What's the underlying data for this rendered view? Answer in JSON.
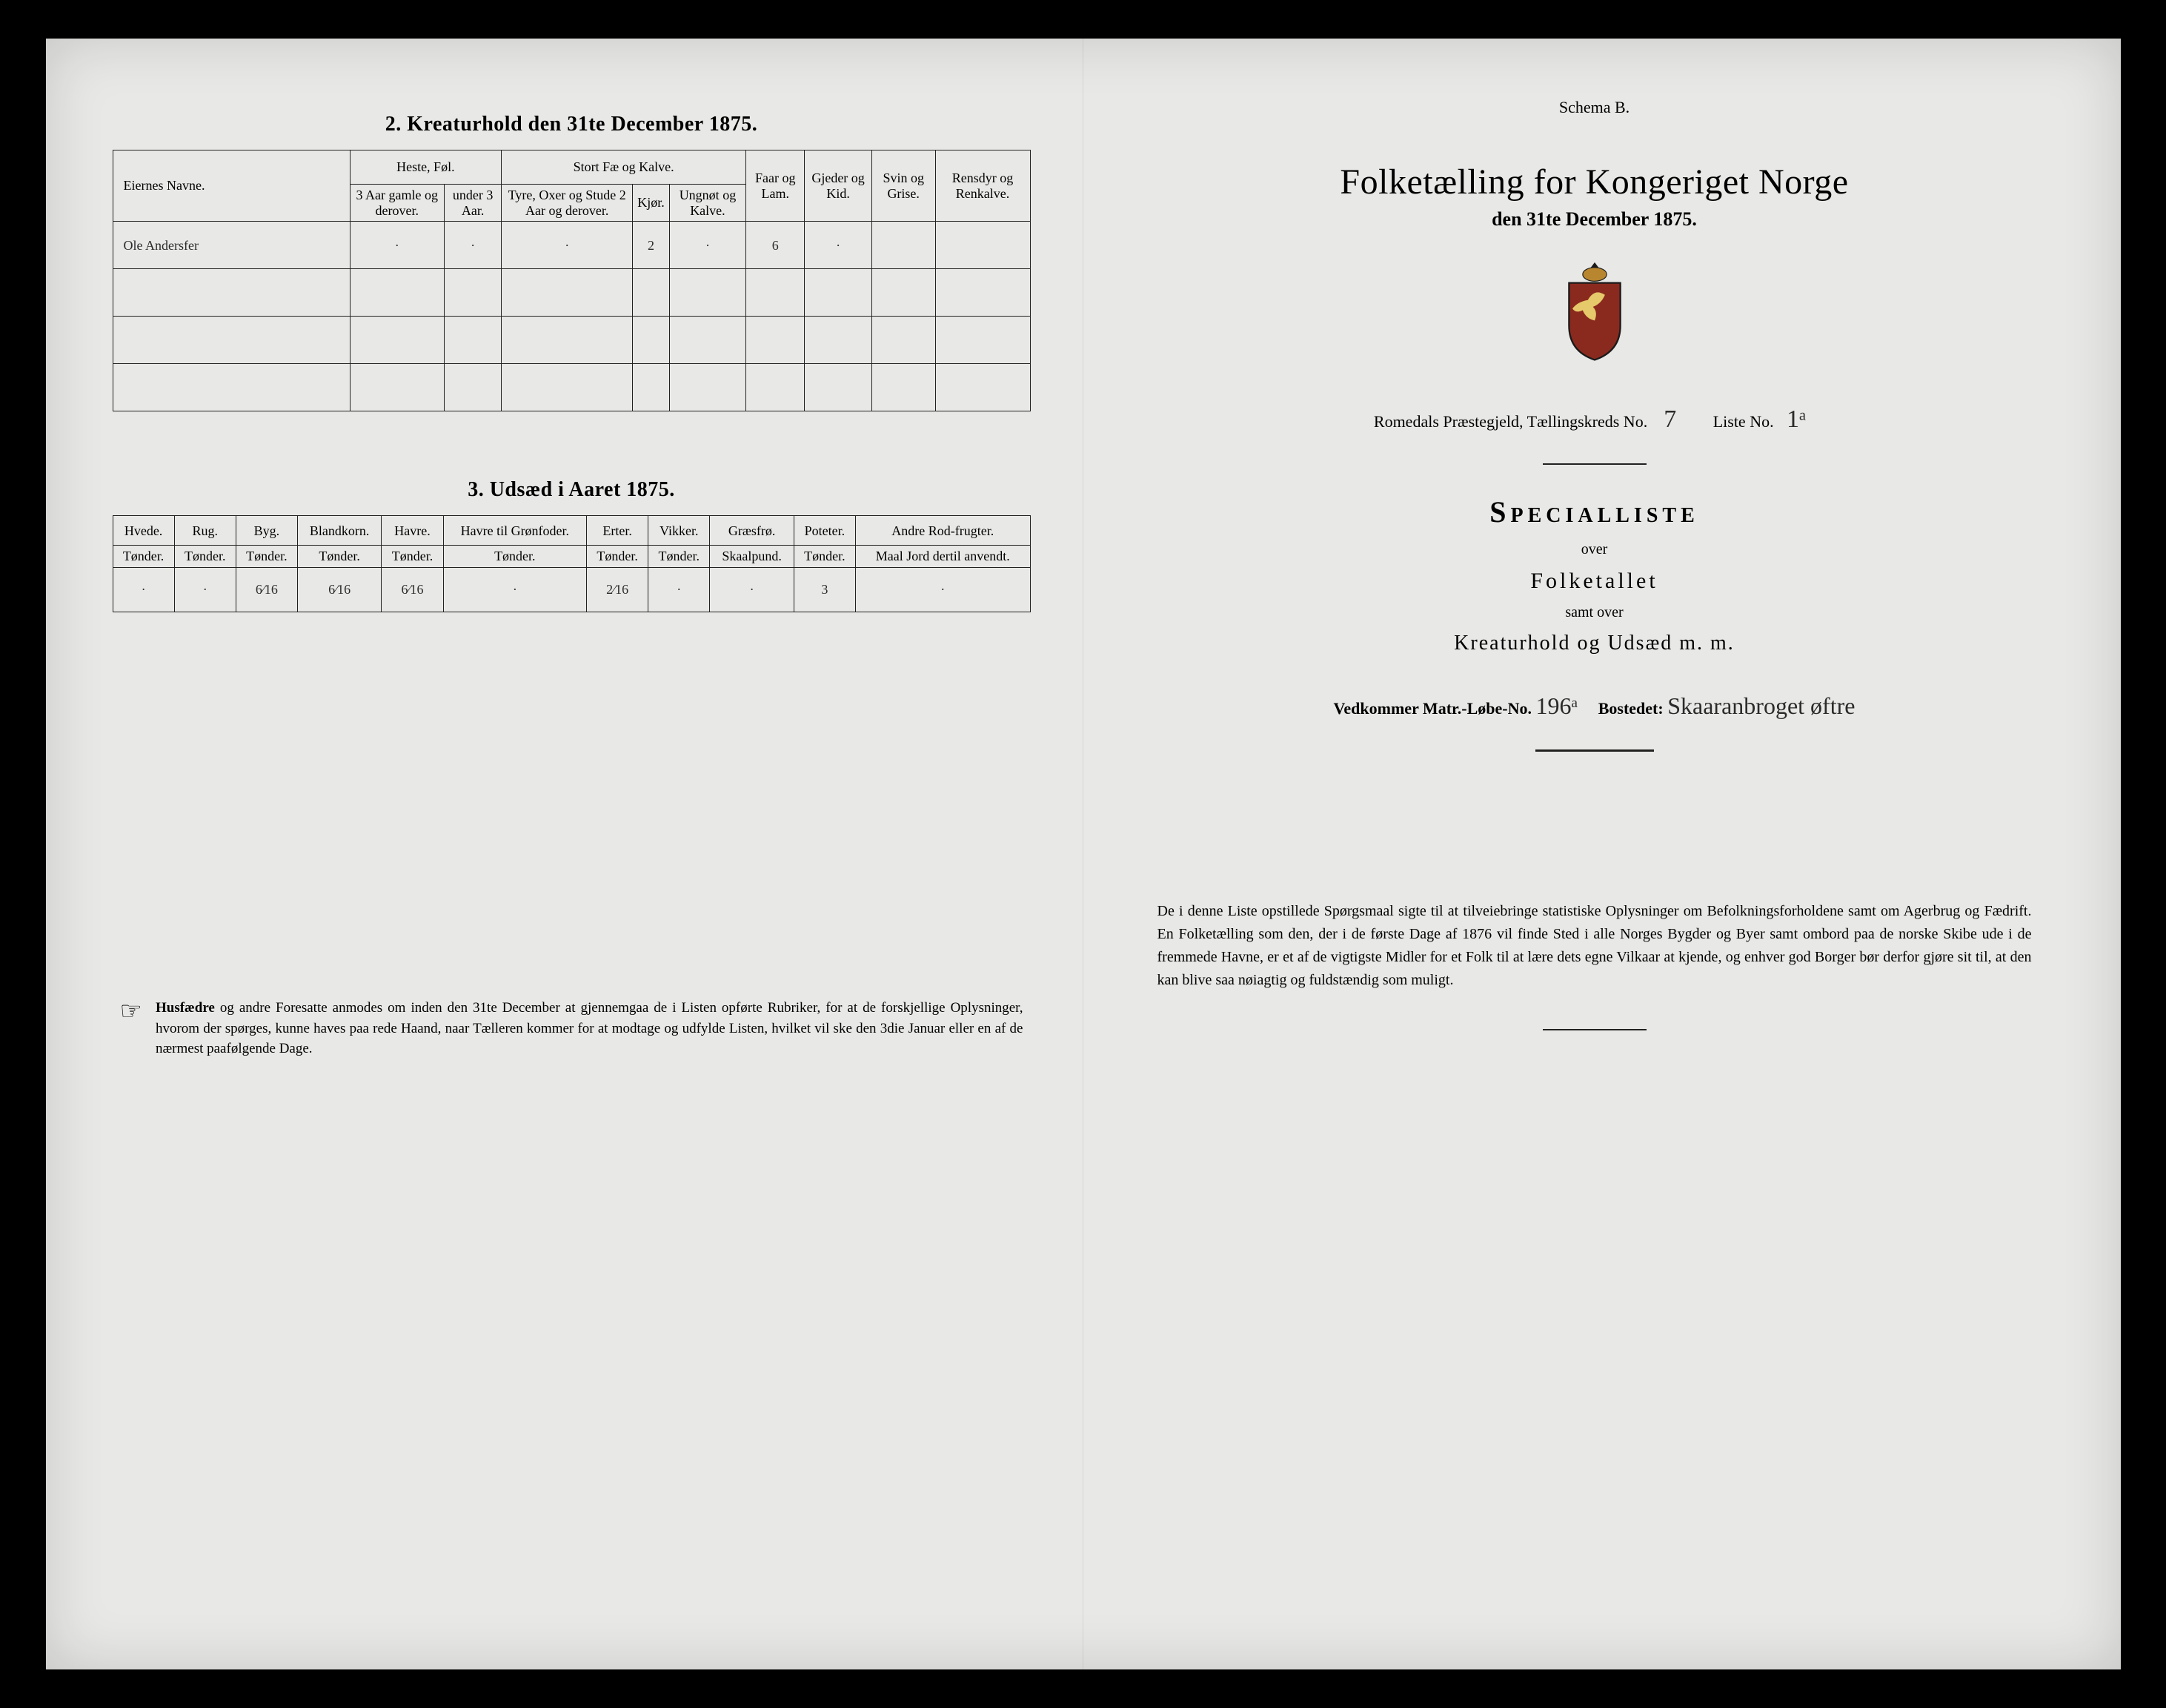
{
  "left": {
    "section2_title": "2.  Kreaturhold den 31te December 1875.",
    "kreatur_table": {
      "col_owner": "Eiernes Navne.",
      "grp_heste": "Heste, Føl.",
      "grp_storfe": "Stort Fæ og Kalve.",
      "col_heste_old": "3 Aar gamle og derover.",
      "col_heste_young": "under 3 Aar.",
      "col_storfe_tyre": "Tyre, Oxer og Stude 2 Aar og derover.",
      "col_storfe_kjor": "Kjør.",
      "col_storfe_ungnot": "Ungnøt og Kalve.",
      "col_faar": "Faar og Lam.",
      "col_gjeder": "Gjeder og Kid.",
      "col_svin": "Svin og Grise.",
      "col_rensdyr": "Rensdyr og Renkalve.",
      "rows": [
        {
          "owner": "Ole Andersfer",
          "heste_old": "·",
          "heste_young": "·",
          "tyre": "·",
          "kjor": "2",
          "ungnot": "·",
          "faar": "6",
          "gjeder": "·",
          "svin": "",
          "rensdyr": ""
        },
        {
          "owner": "",
          "heste_old": "",
          "heste_young": "",
          "tyre": "",
          "kjor": "",
          "ungnot": "",
          "faar": "",
          "gjeder": "",
          "svin": "",
          "rensdyr": ""
        },
        {
          "owner": "",
          "heste_old": "",
          "heste_young": "",
          "tyre": "",
          "kjor": "",
          "ungnot": "",
          "faar": "",
          "gjeder": "",
          "svin": "",
          "rensdyr": ""
        },
        {
          "owner": "",
          "heste_old": "",
          "heste_young": "",
          "tyre": "",
          "kjor": "",
          "ungnot": "",
          "faar": "",
          "gjeder": "",
          "svin": "",
          "rensdyr": ""
        }
      ]
    },
    "section3_title": "3.  Udsæd i Aaret 1875.",
    "udsaed_table": {
      "cols": [
        {
          "h": "Hvede.",
          "s": "Tønder."
        },
        {
          "h": "Rug.",
          "s": "Tønder."
        },
        {
          "h": "Byg.",
          "s": "Tønder."
        },
        {
          "h": "Blandkorn.",
          "s": "Tønder."
        },
        {
          "h": "Havre.",
          "s": "Tønder."
        },
        {
          "h": "Havre til Grønfoder.",
          "s": "Tønder."
        },
        {
          "h": "Erter.",
          "s": "Tønder."
        },
        {
          "h": "Vikker.",
          "s": "Tønder."
        },
        {
          "h": "Græsfrø.",
          "s": "Skaalpund."
        },
        {
          "h": "Poteter.",
          "s": "Tønder."
        },
        {
          "h": "Andre Rod-frugter.",
          "s": "Maal Jord dertil anvendt."
        }
      ],
      "row": [
        "·",
        "·",
        "6⁄16",
        "6⁄16",
        "6⁄16",
        "·",
        "2⁄16",
        "·",
        "·",
        "3",
        "·"
      ]
    },
    "footnote_lead": "Husfædre",
    "footnote_text": " og andre Foresatte anmodes om inden den 31te December at gjennemgaa de i Listen opførte Rubriker, for at de forskjellige Oplysninger, hvorom der spørges, kunne haves paa rede Haand, naar Tælleren kommer for at modtage og udfylde Listen, hvilket vil ske den 3die Januar eller en af de nærmest paafølgende Dage."
  },
  "right": {
    "schema": "Schema B.",
    "title": "Folketælling for Kongeriget Norge",
    "subtitle": "den 31te December 1875.",
    "parish_line_a": "Romedals Præstegjeld, Tællingskreds No.",
    "parish_no": "7",
    "liste_label": "Liste No.",
    "liste_no": "1ᵃ",
    "specialliste": "Specialliste",
    "over": "over",
    "folketallet": "Folketallet",
    "samt": "samt over",
    "kreatur_line": "Kreaturhold og Udsæd m. m.",
    "vedkommer_a": "Vedkommer Matr.-Løbe-No.",
    "matr_no": "196ᵃ",
    "bosted_label": "Bostedet:",
    "bosted": "Skaaranbroget øftre",
    "paragraph": "De i denne Liste opstillede Spørgsmaal sigte til at tilveiebringe statistiske Oplysninger om Befolkningsforholdene samt om Agerbrug og Fædrift.  En Folketælling som den, der i de første Dage af 1876 vil finde Sted i alle Norges Bygder og Byer samt ombord paa de norske Skibe ude i de fremmede Havne, er et af de vigtigste Midler for et Folk til at lære dets egne Vilkaar at kjende, og enhver god Borger bør derfor gjøre sit til, at den kan blive saa nøiagtig og fuldstændig som muligt."
  },
  "colors": {
    "ink": "#1a1a1a",
    "paper": "#e8e8e6",
    "hand": "#2b2b2b",
    "crest_gold": "#b8862f",
    "crest_red": "#8a2a1e"
  }
}
